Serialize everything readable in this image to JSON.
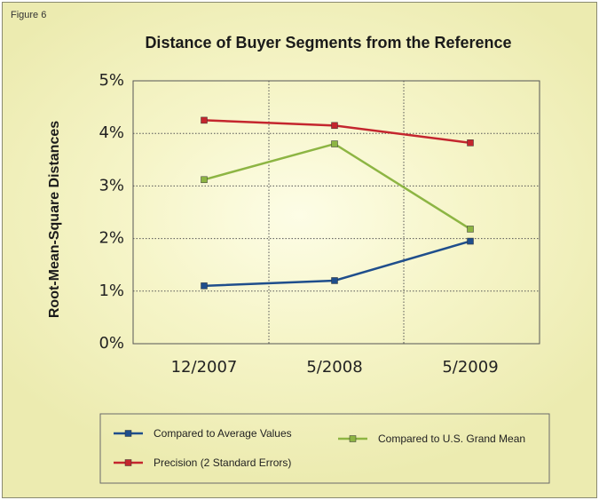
{
  "figure_label": "Figure 6",
  "colors": {
    "series_average": "#1f4e8c",
    "series_precision": "#c4262e",
    "series_grand_mean": "#8db543"
  },
  "chart_data": {
    "type": "line",
    "title": "Distance of Buyer Segments from the Reference",
    "xlabel": "",
    "ylabel": "Root-Mean-Square Distances",
    "categories": [
      "12/2007",
      "5/2008",
      "5/2009"
    ],
    "ylim": [
      0,
      5
    ],
    "yticks": [
      "0%",
      "1%",
      "2%",
      "3%",
      "4%",
      "5%"
    ],
    "grid": true,
    "legend_position": "bottom",
    "series": [
      {
        "name": "Compared to Average Values",
        "values": [
          1.1,
          1.2,
          1.95
        ],
        "color": "#1f4e8c"
      },
      {
        "name": "Precision (2 Standard Errors)",
        "values": [
          4.25,
          4.15,
          3.82
        ],
        "color": "#c4262e"
      },
      {
        "name": "Compared to U.S. Grand Mean",
        "values": [
          3.12,
          3.8,
          2.18
        ],
        "color": "#8db543"
      }
    ]
  }
}
